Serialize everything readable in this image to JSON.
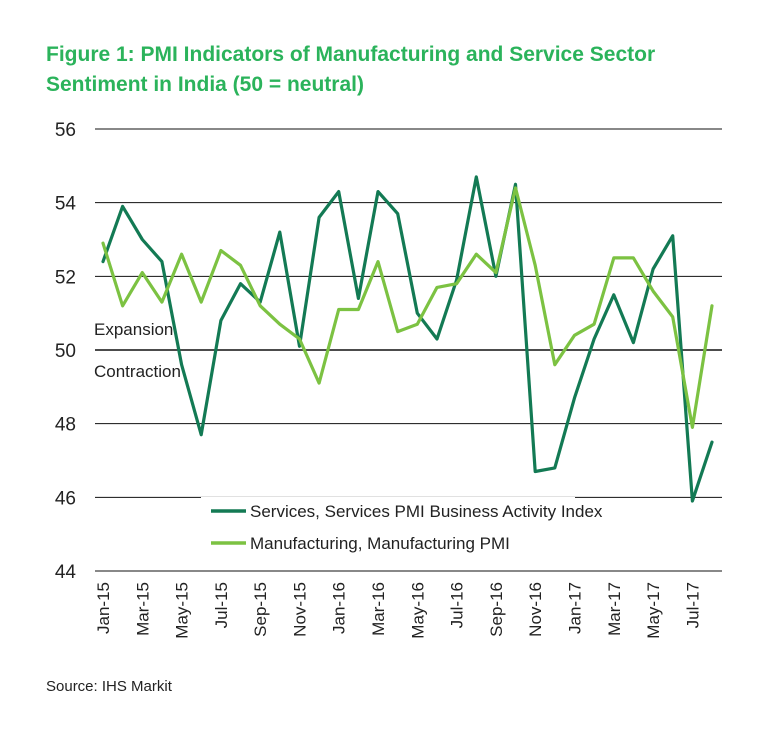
{
  "title_line1": "Figure 1: PMI Indicators of Manufacturing and Service Sector",
  "title_line2": "Sentiment in India (50 = neutral)",
  "source": "Source: IHS Markit",
  "chart_data": {
    "type": "line",
    "title": "Figure 1: PMI Indicators of Manufacturing and Service Sector Sentiment in India (50 = neutral)",
    "xlabel": "",
    "ylabel": "",
    "ylim": [
      44,
      56
    ],
    "yticks": [
      44,
      46,
      48,
      50,
      52,
      54,
      56
    ],
    "grid": true,
    "legend_position": "bottom-center",
    "categories": [
      "Jan-15",
      "Feb-15",
      "Mar-15",
      "Apr-15",
      "May-15",
      "Jun-15",
      "Jul-15",
      "Aug-15",
      "Sep-15",
      "Oct-15",
      "Nov-15",
      "Dec-15",
      "Jan-16",
      "Feb-16",
      "Mar-16",
      "Apr-16",
      "May-16",
      "Jun-16",
      "Jul-16",
      "Aug-16",
      "Sep-16",
      "Oct-16",
      "Nov-16",
      "Dec-16",
      "Jan-17",
      "Feb-17",
      "Mar-17",
      "Apr-17",
      "May-17",
      "Jun-17",
      "Jul-17",
      "Aug-17"
    ],
    "tick_labels": [
      "Jan-15",
      "Mar-15",
      "May-15",
      "Jul-15",
      "Sep-15",
      "Nov-15",
      "Jan-16",
      "Mar-16",
      "May-16",
      "Jul-16",
      "Sep-16",
      "Nov-16",
      "Jan-17",
      "Mar-17",
      "May-17",
      "Jul-17"
    ],
    "annotations": [
      "Expansion",
      "Contraction"
    ],
    "series": [
      {
        "name": "Services, Services PMI Business Activity Index",
        "color": "#137a54",
        "values": [
          52.4,
          53.9,
          53.0,
          52.4,
          49.6,
          47.7,
          50.8,
          51.8,
          51.3,
          53.2,
          50.1,
          53.6,
          54.3,
          51.4,
          54.3,
          53.7,
          51.0,
          50.3,
          51.9,
          54.7,
          52.0,
          54.5,
          46.7,
          46.8,
          48.7,
          50.3,
          51.5,
          50.2,
          52.2,
          53.1,
          45.9,
          47.5
        ]
      },
      {
        "name": "Manufacturing, Manufacturing PMI",
        "color": "#7cc242",
        "values": [
          52.9,
          51.2,
          52.1,
          51.3,
          52.6,
          51.3,
          52.7,
          52.3,
          51.2,
          50.7,
          50.3,
          49.1,
          51.1,
          51.1,
          52.4,
          50.5,
          50.7,
          51.7,
          51.8,
          52.6,
          52.1,
          54.4,
          52.3,
          49.6,
          50.4,
          50.7,
          52.5,
          52.5,
          51.6,
          50.9,
          47.9,
          51.2
        ]
      }
    ]
  }
}
